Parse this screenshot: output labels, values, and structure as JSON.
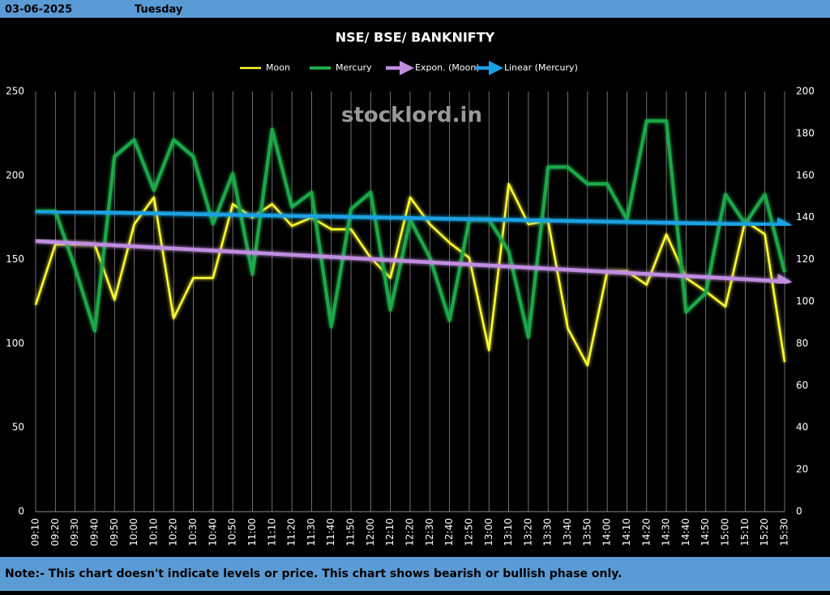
{
  "header": {
    "date": "03-06-2025",
    "day": "Tuesday"
  },
  "chart_data": {
    "type": "line",
    "title": "NSE/ BSE/ BANKNIFTY",
    "watermark": "stocklord.in",
    "categories": [
      "09:10",
      "09:20",
      "09:30",
      "09:40",
      "09:50",
      "10:00",
      "10:10",
      "10:20",
      "10:30",
      "10:40",
      "10:50",
      "11:00",
      "11:10",
      "11:20",
      "11:30",
      "11:40",
      "11:50",
      "12:00",
      "12:10",
      "12:20",
      "12:30",
      "12:40",
      "12:50",
      "13:00",
      "13:10",
      "13:20",
      "13:30",
      "13:40",
      "13:50",
      "14:00",
      "14:10",
      "14:20",
      "14:30",
      "14:40",
      "14:50",
      "15:00",
      "15:10",
      "15:20",
      "15:30"
    ],
    "series": [
      {
        "name": "Moon",
        "color": "#ffff33",
        "axis": "y",
        "values": [
          123,
          159,
          159,
          159,
          126,
          171,
          187,
          115,
          139,
          139,
          183,
          175,
          183,
          170,
          175,
          168,
          168,
          151,
          139,
          187,
          171,
          160,
          151,
          96,
          195,
          171,
          173,
          109,
          87,
          143,
          143,
          135,
          165,
          139,
          131,
          122,
          173,
          165,
          89
        ]
      },
      {
        "name": "Mercury",
        "color": "#1fa84a",
        "axis": "y2",
        "values": [
          143,
          143,
          116,
          86,
          169,
          177,
          153,
          177,
          169,
          137,
          161,
          113,
          182,
          145,
          152,
          88,
          144,
          152,
          96,
          139,
          121,
          91,
          139,
          139,
          124,
          83,
          164,
          164,
          156,
          156,
          139,
          186,
          186,
          95,
          104,
          151,
          137,
          151,
          114
        ]
      }
    ],
    "trendlines": [
      {
        "name": "Expon. (Moon)",
        "color": "#c08ee0",
        "axis": "y",
        "start": 161,
        "end": 137
      },
      {
        "name": "Linear (Mercury)",
        "color": "#1ba1e2",
        "axis": "y2",
        "start": 143,
        "end": 136.5
      }
    ],
    "ylim": [
      0,
      250
    ],
    "yticks": [
      0,
      50,
      100,
      150,
      200,
      250
    ],
    "y2lim": [
      0,
      200
    ],
    "y2ticks": [
      0,
      20,
      40,
      60,
      80,
      100,
      120,
      140,
      160,
      180,
      200
    ],
    "grid": true
  },
  "footer": {
    "note": "Note:- This chart doesn't indicate levels or price. This chart shows bearish or bullish phase only."
  }
}
